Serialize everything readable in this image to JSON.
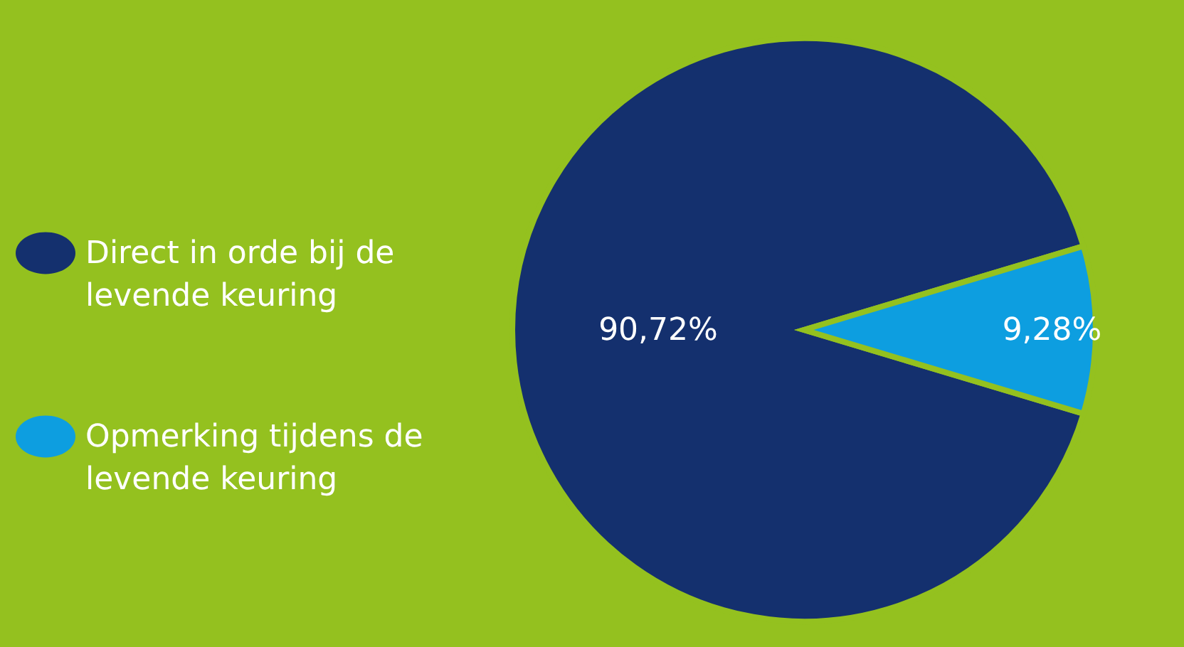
{
  "chart_data": {
    "type": "pie",
    "categories": [
      "Direct in orde bij de levende keuring",
      "Opmerking tijdens de levende keuring"
    ],
    "values": [
      90.72,
      9.28
    ],
    "colors": [
      "#14306e",
      "#0d9ee0"
    ],
    "value_labels": [
      "90,72%",
      "9,28%"
    ],
    "legend": "left"
  }
}
